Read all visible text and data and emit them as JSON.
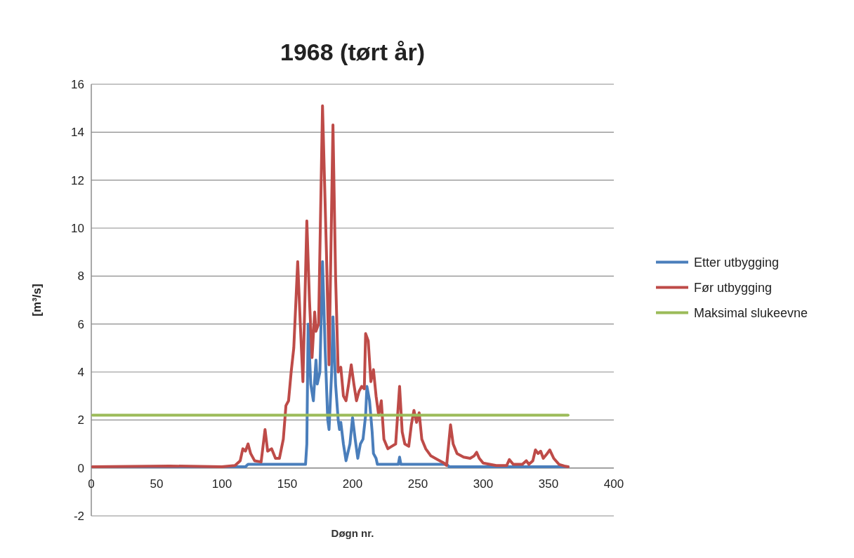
{
  "chart_data": {
    "type": "line",
    "title": "1968 (tørt år)",
    "xlabel": "Døgn nr.",
    "ylabel": "[m³/s]",
    "xlim": [
      0,
      400
    ],
    "xticks": [
      0,
      50,
      100,
      150,
      200,
      250,
      300,
      350,
      400
    ],
    "ylim": [
      -2,
      16
    ],
    "yticks": [
      -2,
      0,
      2,
      4,
      6,
      8,
      10,
      12,
      14,
      16
    ],
    "grid": "y",
    "legend": "right",
    "line_style": "solid",
    "series": [
      {
        "name": "Etter utbygging",
        "color": "#4a7ebb",
        "x": [
          1,
          118,
          120,
          164,
          165,
          166,
          168,
          170,
          172,
          173,
          175,
          177,
          179,
          181,
          182,
          184,
          185,
          187,
          189,
          190,
          191,
          193,
          195,
          198,
          200,
          202,
          204,
          206,
          208,
          210,
          211,
          213,
          215,
          216,
          218,
          219,
          235,
          236,
          237,
          272,
          274,
          365
        ],
        "values": [
          0.05,
          0.05,
          0.15,
          0.15,
          1,
          6,
          3.5,
          2.8,
          4.5,
          3.5,
          4,
          8.6,
          5,
          2,
          1.6,
          4,
          6.3,
          3.5,
          2,
          1.6,
          1.9,
          1,
          0.3,
          1,
          2.1,
          1.2,
          0.4,
          1,
          1.2,
          2.2,
          3.4,
          2.8,
          1.5,
          0.6,
          0.4,
          0.15,
          0.15,
          0.45,
          0.15,
          0.15,
          0.05,
          0.05
        ]
      },
      {
        "name": "Før utbygging",
        "color": "#be4b48",
        "x": [
          1,
          60,
          100,
          110,
          114,
          116,
          118,
          120,
          122,
          125,
          130,
          133,
          135,
          138,
          141,
          144,
          147,
          149,
          151,
          153,
          155,
          158,
          160,
          162,
          165,
          167,
          169,
          171,
          172,
          174,
          177,
          180,
          182,
          185,
          187,
          189,
          191,
          193,
          195,
          197,
          199,
          201,
          203,
          205,
          207,
          209,
          210,
          212,
          214,
          216,
          218,
          220,
          222,
          224,
          227,
          230,
          233,
          236,
          238,
          240,
          243,
          245,
          247,
          249,
          251,
          253,
          256,
          260,
          265,
          270,
          272,
          275,
          277,
          280,
          285,
          290,
          293,
          295,
          297,
          300,
          310,
          318,
          320,
          323,
          330,
          333,
          335,
          338,
          340,
          342,
          344,
          346,
          349,
          351,
          354,
          358,
          362,
          365
        ],
        "values": [
          0.05,
          0.08,
          0.05,
          0.1,
          0.3,
          0.8,
          0.7,
          1,
          0.6,
          0.3,
          0.25,
          1.6,
          0.7,
          0.8,
          0.4,
          0.4,
          1.2,
          2.6,
          2.8,
          4,
          5,
          8.6,
          6,
          3.6,
          10.3,
          7,
          4.6,
          6.5,
          5.7,
          6,
          15.1,
          9,
          4.3,
          14.3,
          8,
          4,
          4.2,
          3,
          2.8,
          3.5,
          4.3,
          3.5,
          2.8,
          3.2,
          3.4,
          3.3,
          5.6,
          5.3,
          3.6,
          4.1,
          3,
          2.2,
          2.8,
          1.2,
          0.8,
          0.9,
          1,
          3.4,
          1.5,
          1,
          0.9,
          1.8,
          2.4,
          1.9,
          2.3,
          1.2,
          0.8,
          0.5,
          0.35,
          0.2,
          0.1,
          1.8,
          1,
          0.6,
          0.45,
          0.4,
          0.5,
          0.65,
          0.4,
          0.2,
          0.1,
          0.1,
          0.35,
          0.15,
          0.15,
          0.3,
          0.15,
          0.3,
          0.75,
          0.6,
          0.7,
          0.4,
          0.6,
          0.75,
          0.4,
          0.15,
          0.08,
          0.05
        ]
      },
      {
        "name": "Maksimal slukeevne",
        "color": "#9bbb59",
        "x": [
          1,
          365
        ],
        "values": [
          2.2,
          2.2
        ]
      }
    ]
  }
}
